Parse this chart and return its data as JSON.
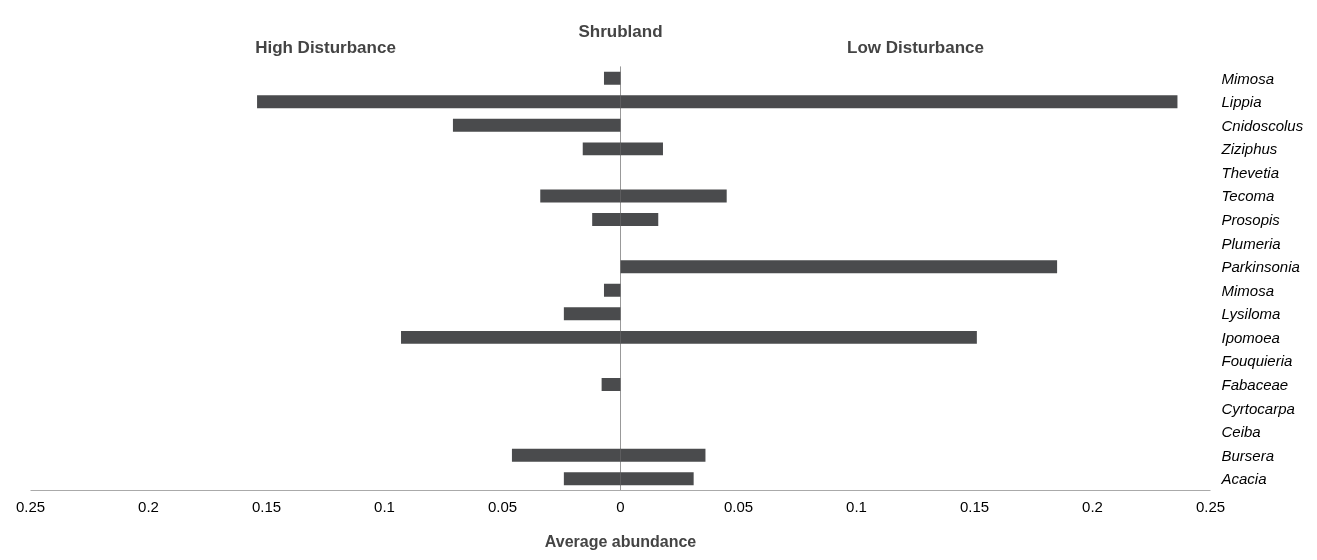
{
  "chart_data": {
    "type": "bar",
    "orientation": "horizontal",
    "title": "Shrubland",
    "xlabel": "Average abundance",
    "categories": [
      "Mimosa",
      "Lippia",
      "Cnidoscolus",
      "Ziziphus",
      "Thevetia",
      "Tecoma",
      "Prosopis",
      "Plumeria",
      "Parkinsonia",
      "Mimosa",
      "Lysiloma",
      "Ipomoea",
      "Fouquieria",
      "Fabaceae",
      "Cyrtocarpa",
      "Ceiba",
      "Bursera",
      "Acacia"
    ],
    "series": [
      {
        "name": "High Disturbance",
        "color": "#4a4b4d",
        "values": [
          -0.007,
          -0.154,
          -0.071,
          -0.016,
          null,
          -0.034,
          -0.012,
          null,
          null,
          -0.007,
          -0.024,
          -0.093,
          null,
          -0.008,
          null,
          null,
          -0.046,
          -0.024
        ]
      },
      {
        "name": "Low Disturbance",
        "color": "#4a4b4d",
        "values": [
          null,
          0.236,
          null,
          0.018,
          null,
          0.045,
          0.016,
          null,
          0.185,
          null,
          null,
          0.151,
          null,
          null,
          null,
          null,
          0.036,
          0.031
        ]
      }
    ],
    "xlim": [
      -0.25,
      0.25
    ],
    "xticks": [
      {
        "value": -0.25,
        "label": "0.25"
      },
      {
        "value": -0.2,
        "label": "0.2"
      },
      {
        "value": -0.15,
        "label": "0.15"
      },
      {
        "value": -0.1,
        "label": "0.1"
      },
      {
        "value": -0.05,
        "label": "0.05"
      },
      0,
      0.05,
      0.1,
      0.15,
      0.2,
      0.25
    ],
    "ref_lines": [
      {
        "axis": "x",
        "value": 0,
        "color": "#999999"
      }
    ],
    "grid": false
  }
}
